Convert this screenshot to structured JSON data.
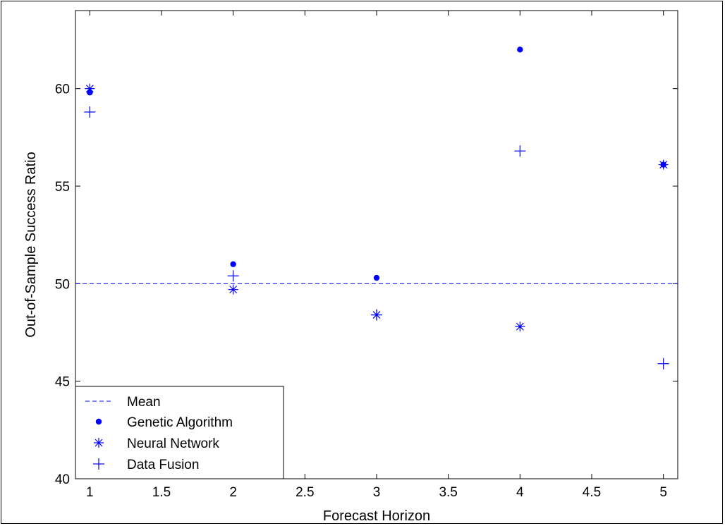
{
  "chart_data": {
    "type": "scatter",
    "xlabel": "Forecast Horizon",
    "ylabel": "Out-of-Sample Success Ratio",
    "xlim": [
      0.9,
      5.1
    ],
    "ylim": [
      40,
      64
    ],
    "xticks": [
      1,
      1.5,
      2,
      2.5,
      3,
      3.5,
      4,
      4.5,
      5
    ],
    "xtick_labels": [
      "1",
      "1.5",
      "2",
      "2.5",
      "3",
      "3.5",
      "4",
      "4.5",
      "5"
    ],
    "yticks": [
      40,
      45,
      50,
      55,
      60
    ],
    "ytick_labels": [
      "40",
      "45",
      "50",
      "55",
      "60"
    ],
    "grid": false,
    "legend_position": "bottom-left",
    "color": "#0000ff",
    "mean": {
      "name": "Mean",
      "value": 50,
      "style": "dashed"
    },
    "series": [
      {
        "name": "Genetic Algorithm",
        "marker": "dot",
        "x": [
          1,
          2,
          3,
          4,
          5
        ],
        "y": [
          59.8,
          51.0,
          50.3,
          62.0,
          56.1
        ]
      },
      {
        "name": "Neural Network",
        "marker": "asterisk",
        "x": [
          1,
          2,
          3,
          4,
          5
        ],
        "y": [
          60.0,
          49.7,
          48.4,
          47.8,
          56.1
        ]
      },
      {
        "name": "Data Fusion",
        "marker": "plus",
        "x": [
          1,
          2,
          3,
          4,
          5
        ],
        "y": [
          58.8,
          50.4,
          48.4,
          56.8,
          45.9
        ]
      }
    ]
  }
}
